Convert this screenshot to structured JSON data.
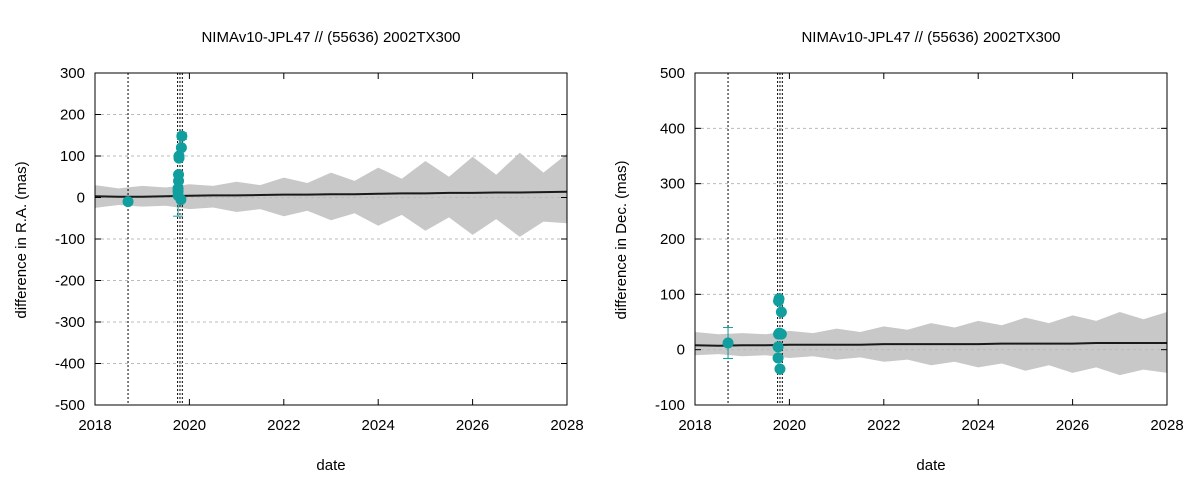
{
  "chart_data": [
    {
      "type": "line",
      "title": "NIMAv10-JPL47 // (55636) 2002TX300",
      "xlabel": "date",
      "ylabel": "difference in R.A. (mas)",
      "xlim": [
        2018,
        2028
      ],
      "ylim": [
        -500,
        300
      ],
      "xticks": [
        "2018",
        "2020",
        "2022",
        "2024",
        "2026",
        "2028"
      ],
      "yticks": [
        "-500",
        "-400",
        "-300",
        "-200",
        "-100",
        "0",
        "100",
        "200",
        "300"
      ],
      "ytick_values": [
        -500,
        -400,
        -300,
        -200,
        -100,
        0,
        100,
        200,
        300
      ],
      "grid": true,
      "vlines": [
        2018.7,
        2019.75,
        2019.8,
        2019.85
      ],
      "band": {
        "x": [
          2018.0,
          2018.5,
          2019.0,
          2019.5,
          2020.0,
          2020.5,
          2021.0,
          2021.5,
          2022.0,
          2022.5,
          2023.0,
          2023.5,
          2024.0,
          2024.5,
          2025.0,
          2025.5,
          2026.0,
          2026.5,
          2027.0,
          2027.5,
          2028.0
        ],
        "upper": [
          30,
          22,
          28,
          24,
          32,
          28,
          38,
          30,
          48,
          35,
          60,
          40,
          72,
          45,
          88,
          50,
          98,
          55,
          108,
          60,
          105
        ],
        "lower": [
          -25,
          -18,
          -22,
          -20,
          -28,
          -24,
          -35,
          -28,
          -45,
          -32,
          -55,
          -38,
          -68,
          -42,
          -80,
          -48,
          -90,
          -52,
          -95,
          -58,
          -62
        ]
      },
      "series": [
        {
          "type": "line",
          "x": [
            2018.0,
            2018.5,
            2019.0,
            2019.5,
            2020.0,
            2020.5,
            2021.0,
            2021.5,
            2022.0,
            2022.5,
            2023.0,
            2023.5,
            2024.0,
            2024.5,
            2025.0,
            2025.5,
            2026.0,
            2026.5,
            2027.0,
            2027.5,
            2028.0
          ],
          "y": [
            3,
            2,
            2,
            3,
            4,
            5,
            5,
            6,
            7,
            7,
            8,
            8,
            9,
            10,
            10,
            11,
            11,
            12,
            12,
            13,
            14
          ]
        },
        {
          "type": "scatter",
          "x": [
            2018.7,
            2019.76,
            2019.76,
            2019.76,
            2019.77,
            2019.77,
            2019.78,
            2019.78,
            2019.82,
            2019.83,
            2019.84
          ],
          "y": [
            -10,
            5,
            15,
            22,
            40,
            55,
            95,
            100,
            -5,
            120,
            148
          ],
          "err": [
            5,
            50,
            0,
            0,
            0,
            0,
            0,
            0,
            0,
            0,
            8
          ]
        }
      ]
    },
    {
      "type": "line",
      "title": "NIMAv10-JPL47 // (55636) 2002TX300",
      "xlabel": "date",
      "ylabel": "difference in Dec. (mas)",
      "xlim": [
        2018,
        2028
      ],
      "ylim": [
        -100,
        500
      ],
      "xticks": [
        "2018",
        "2020",
        "2022",
        "2024",
        "2026",
        "2028"
      ],
      "yticks": [
        "-100",
        "0",
        "100",
        "200",
        "300",
        "400",
        "500"
      ],
      "ytick_values": [
        -100,
        0,
        100,
        200,
        300,
        400,
        500
      ],
      "grid": true,
      "vlines": [
        2018.7,
        2019.75,
        2019.8,
        2019.85
      ],
      "band": {
        "x": [
          2018.0,
          2018.5,
          2019.0,
          2019.5,
          2020.0,
          2020.5,
          2021.0,
          2021.5,
          2022.0,
          2022.5,
          2023.0,
          2023.5,
          2024.0,
          2024.5,
          2025.0,
          2025.5,
          2026.0,
          2026.5,
          2027.0,
          2027.5,
          2028.0
        ],
        "upper": [
          32,
          28,
          30,
          28,
          34,
          30,
          38,
          32,
          42,
          36,
          48,
          40,
          52,
          44,
          58,
          48,
          62,
          52,
          68,
          55,
          68
        ],
        "lower": [
          -10,
          -8,
          -12,
          -10,
          -15,
          -12,
          -18,
          -14,
          -22,
          -18,
          -28,
          -22,
          -32,
          -25,
          -38,
          -28,
          -42,
          -32,
          -46,
          -36,
          -42
        ]
      },
      "series": [
        {
          "type": "line",
          "x": [
            2018.0,
            2018.5,
            2019.0,
            2019.5,
            2020.0,
            2020.5,
            2021.0,
            2021.5,
            2022.0,
            2022.5,
            2023.0,
            2023.5,
            2024.0,
            2024.5,
            2025.0,
            2025.5,
            2026.0,
            2026.5,
            2027.0,
            2027.5,
            2028.0
          ],
          "y": [
            8,
            7,
            8,
            8,
            9,
            9,
            9,
            9,
            10,
            10,
            10,
            10,
            10,
            11,
            11,
            11,
            11,
            12,
            12,
            12,
            12
          ]
        },
        {
          "type": "scatter",
          "x": [
            2018.7,
            2019.76,
            2019.76,
            2019.77,
            2019.77,
            2019.78,
            2019.79,
            2019.8,
            2019.83,
            2019.83
          ],
          "y": [
            12,
            -15,
            5,
            28,
            88,
            92,
            30,
            -35,
            68,
            28
          ],
          "err": [
            28,
            0,
            0,
            0,
            0,
            0,
            0,
            0,
            0,
            0
          ]
        }
      ]
    }
  ],
  "colors": {
    "band": "#c8c8c8",
    "model_line": "#1a1a1a",
    "points": "#109e9e",
    "grid": "#bbbbbb",
    "vline": "#000000"
  }
}
